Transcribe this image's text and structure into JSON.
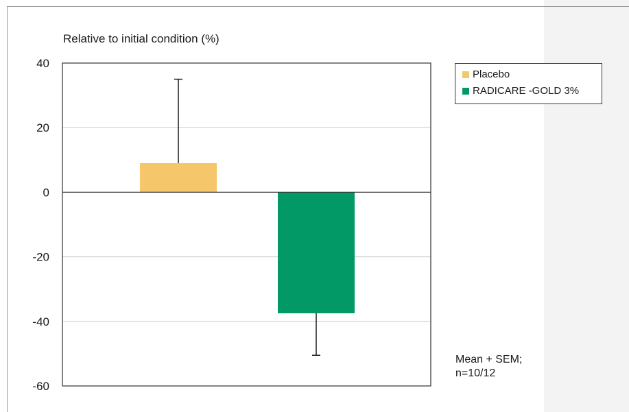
{
  "colors": {
    "placebo": "#f6c66b",
    "radicare": "#029966",
    "grid": "#c8c8c8",
    "axis": "#333333"
  },
  "legend": {
    "items": [
      {
        "label": "Placebo",
        "color": "#f6c66b"
      },
      {
        "label": "RADICARE -GOLD 3%",
        "color": "#029966"
      }
    ]
  },
  "note": {
    "line1": "Mean + SEM;",
    "line2": "n=10/12"
  },
  "chart_data": {
    "type": "bar",
    "title": "",
    "xlabel": "",
    "ylabel": "Relative to initial condition (%)",
    "ylim": [
      -60,
      40
    ],
    "yticks": [
      40,
      20,
      0,
      -20,
      -40,
      -60
    ],
    "grid": true,
    "legend_position": "right",
    "categories": [
      "Placebo",
      "RADICARE -GOLD 3%"
    ],
    "series": [
      {
        "values": [
          9,
          -37.5
        ],
        "error": [
          26,
          13
        ]
      }
    ]
  }
}
